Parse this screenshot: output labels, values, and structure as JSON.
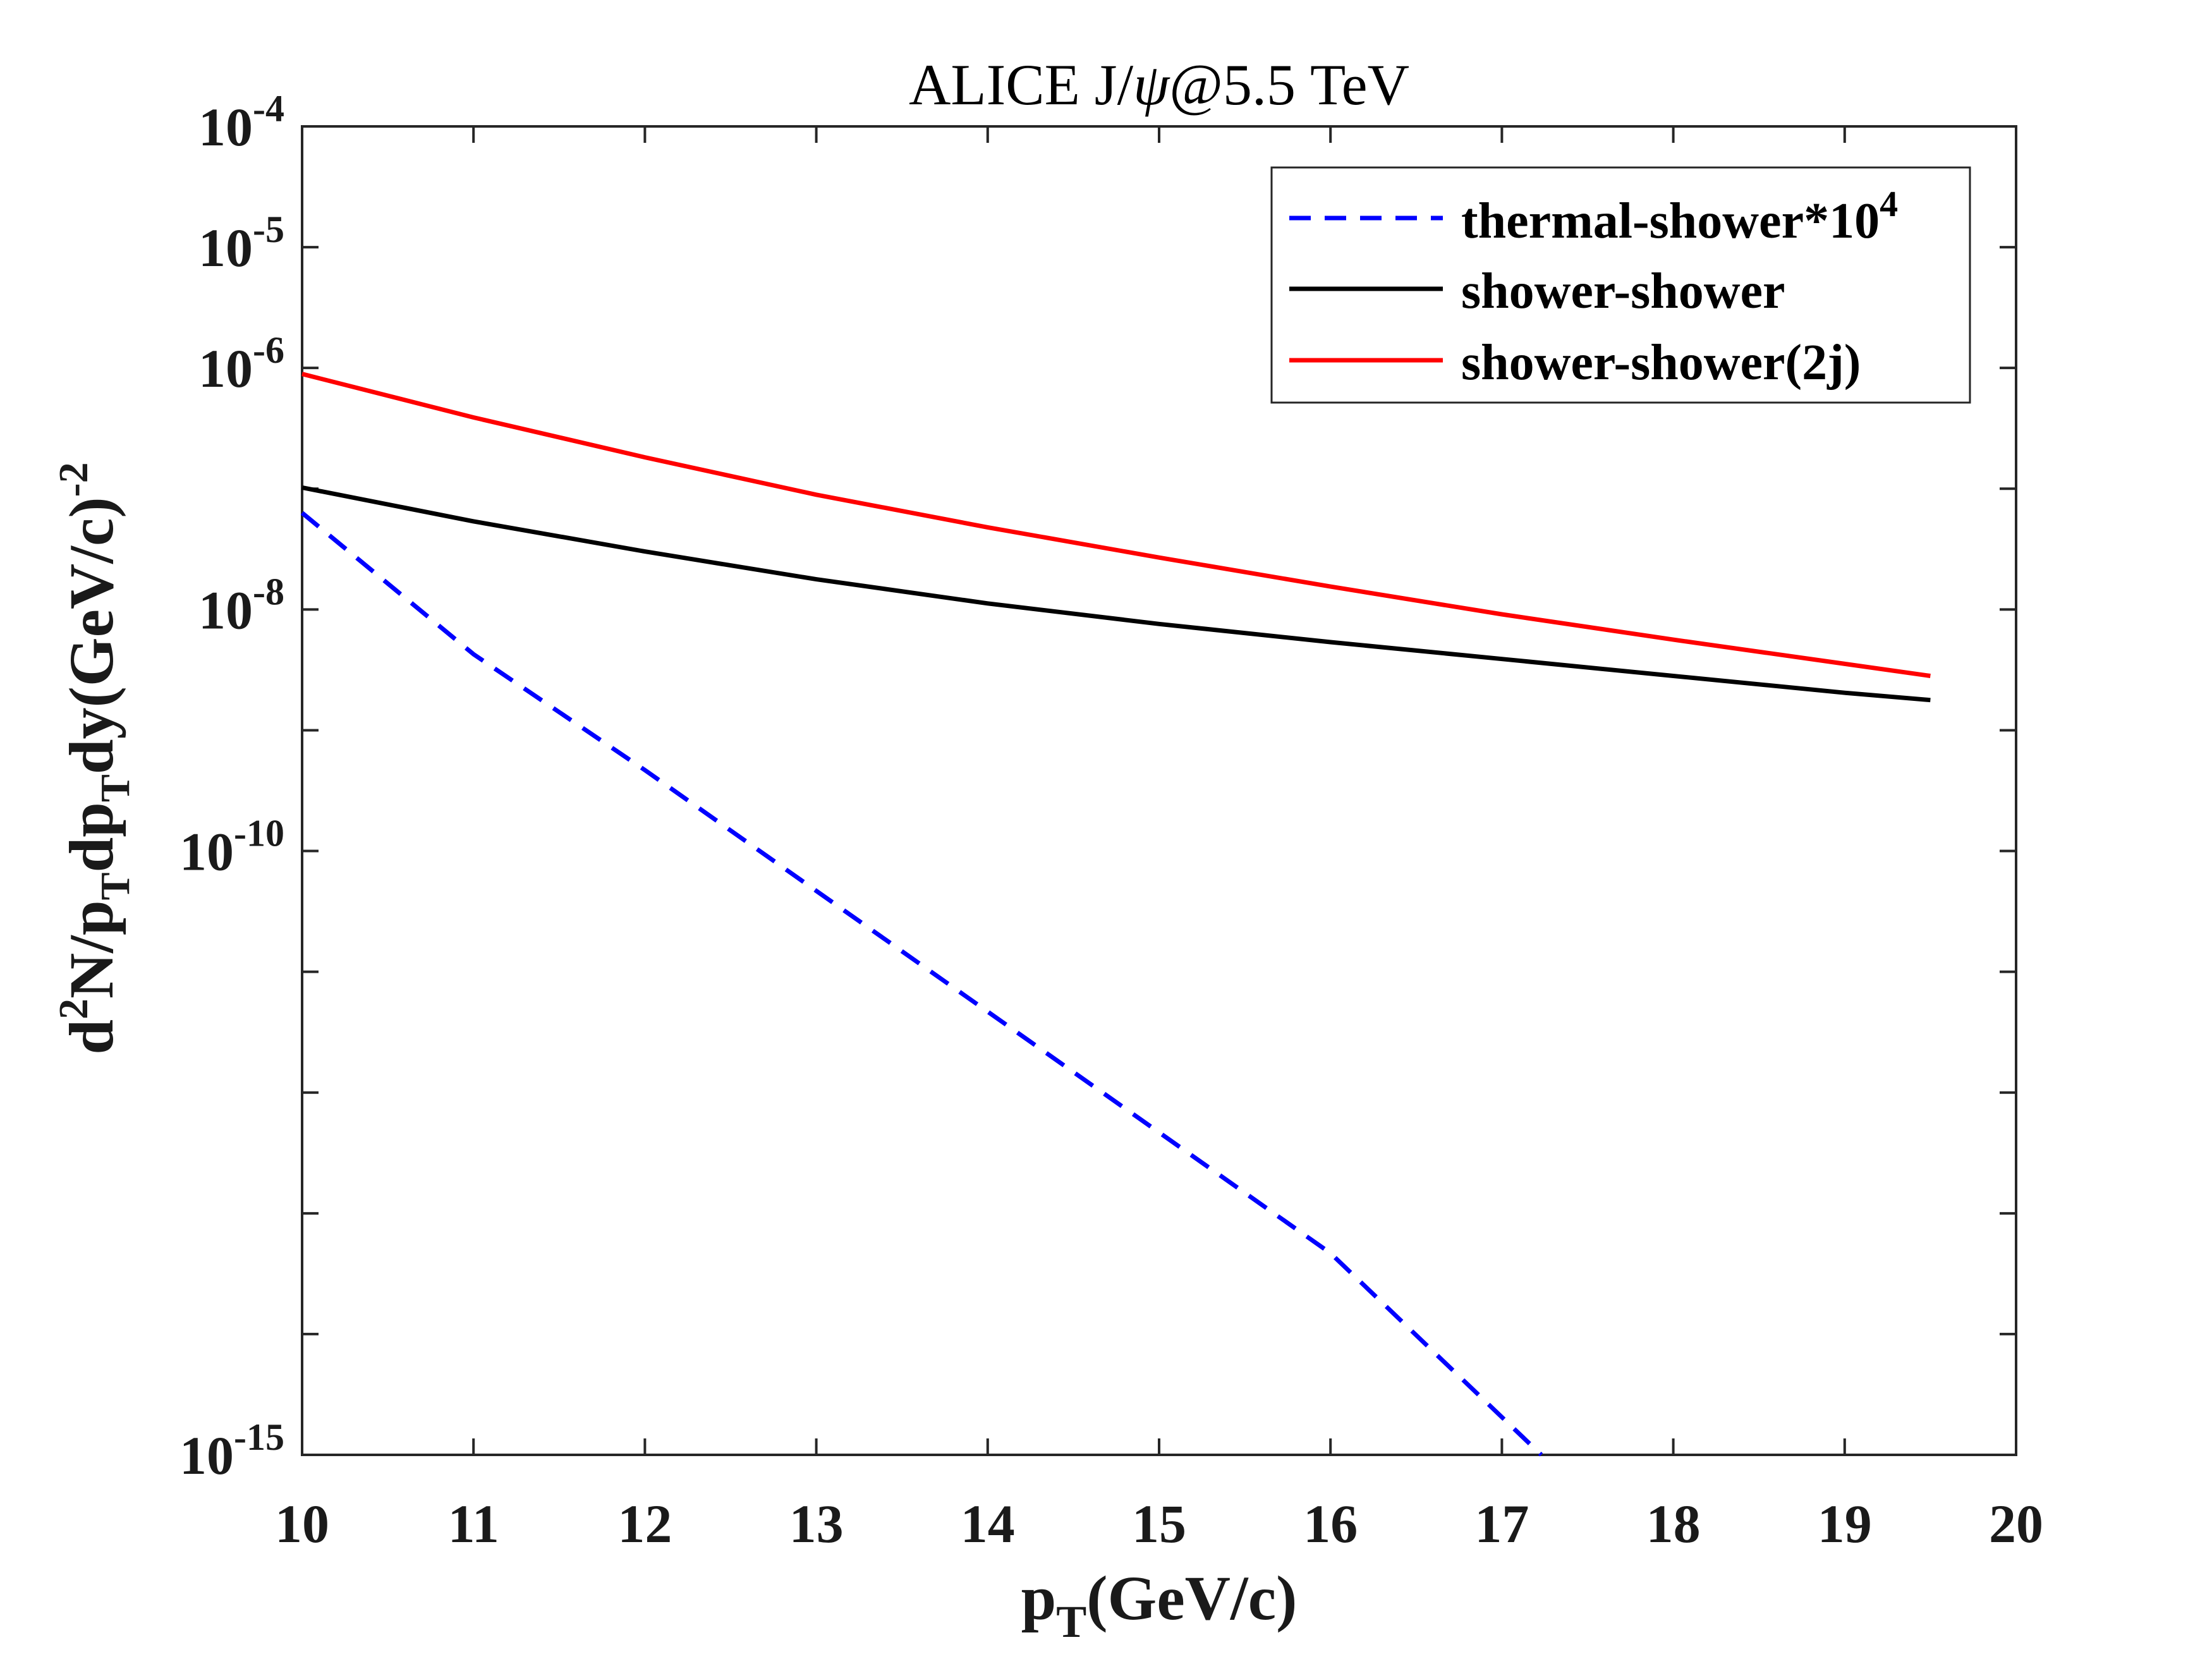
{
  "chart_data": {
    "type": "line",
    "title": "ALICE J/ψ@5.5 TeV",
    "title_parts": {
      "pre": "ALICE J/",
      "psi": "ψ",
      "post": "@5.5 TeV"
    },
    "xlabel": "pT(GeV/c)",
    "xlabel_parts": {
      "p": "p",
      "sub": "T",
      "rest": "(GeV/c)"
    },
    "ylabel": "d2N/pTdpTdy(GeV/c)-2",
    "ylabel_parts": {
      "d": "d",
      "sup2": "2",
      "a": "N/p",
      "subT1": "T",
      "b": "dp",
      "subT2": "T",
      "c": "dy(GeV/c)",
      "supm2": "-2"
    },
    "xlim": [
      10,
      20
    ],
    "ylim_log10": [
      -15,
      -4
    ],
    "yscale": "log",
    "x_ticks": [
      10,
      11,
      12,
      13,
      14,
      15,
      16,
      17,
      18,
      19,
      20
    ],
    "x_tick_labels": [
      "10",
      "11",
      "12",
      "13",
      "14",
      "15",
      "16",
      "17",
      "18",
      "19",
      "20"
    ],
    "y_ticks_log10": [
      -4,
      -5,
      -6,
      -7,
      -8,
      -9,
      -10,
      -11,
      -12,
      -13,
      -14,
      -15
    ],
    "y_tick_labels": [
      {
        "log10": -4,
        "base": "10",
        "exp": "-4"
      },
      {
        "log10": -5,
        "base": "10",
        "exp": "-5"
      },
      {
        "log10": -6,
        "base": "10",
        "exp": "-6"
      },
      {
        "log10": -8,
        "base": "10",
        "exp": "-8"
      },
      {
        "log10": -10,
        "base": "10",
        "exp": "-10"
      },
      {
        "log10": -15,
        "base": "10",
        "exp": "-15"
      }
    ],
    "grid": false,
    "legend_position": "top-right",
    "series": [
      {
        "name": "thermal-shower*10^4",
        "legend_label": {
          "text": "thermal-shower*10",
          "sup": "4"
        },
        "color": "#0000ff",
        "dash": true,
        "x": [
          10,
          11,
          12,
          13,
          14,
          15,
          16,
          17.23
        ],
        "log10_y": [
          -7.2,
          -8.37,
          -9.33,
          -10.33,
          -11.33,
          -12.33,
          -13.33,
          -15.0
        ]
      },
      {
        "name": "shower-shower",
        "legend_label": {
          "text": "shower-shower"
        },
        "color": "#000000",
        "dash": false,
        "x": [
          10,
          11,
          12,
          13,
          14,
          15,
          16,
          17,
          18,
          19,
          19.5
        ],
        "log10_y": [
          -6.99,
          -7.27,
          -7.52,
          -7.75,
          -7.95,
          -8.12,
          -8.27,
          -8.41,
          -8.55,
          -8.69,
          -8.75
        ]
      },
      {
        "name": "shower-shower(2j)",
        "legend_label": {
          "text": "shower-shower(2j)"
        },
        "color": "#ff0000",
        "dash": false,
        "x": [
          10,
          11,
          12,
          13,
          14,
          15,
          16,
          17,
          18,
          19,
          19.5
        ],
        "log10_y": [
          -6.05,
          -6.41,
          -6.74,
          -7.05,
          -7.32,
          -7.57,
          -7.81,
          -8.04,
          -8.25,
          -8.45,
          -8.55
        ]
      }
    ]
  }
}
